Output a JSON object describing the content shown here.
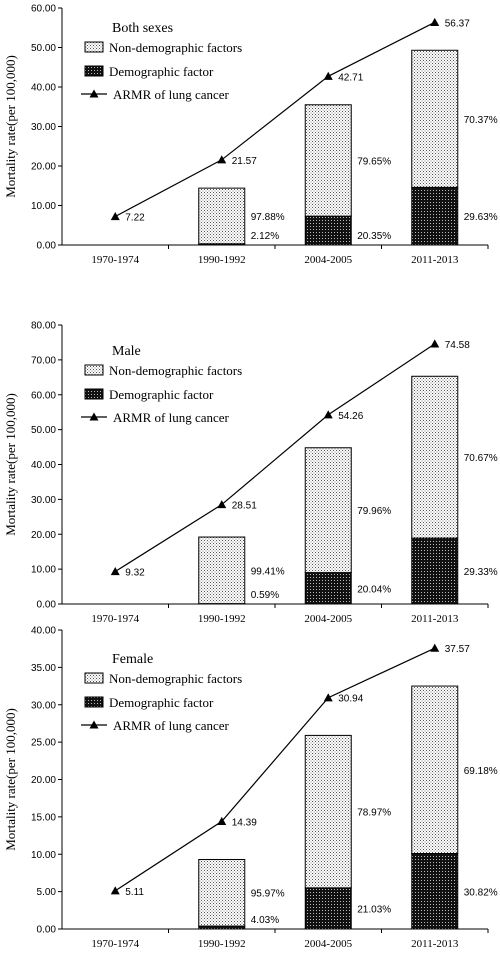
{
  "chart_data": [
    {
      "type": "bar",
      "title": "Both sexes",
      "ylabel": "Mortality  rate(per 100,000)",
      "categories": [
        "1970-1974",
        "1990-1992",
        "2004-2005",
        "2011-2013"
      ],
      "ylim": [
        0,
        60
      ],
      "yticks": [
        "0.00",
        "10.00",
        "20.00",
        "30.00",
        "40.00",
        "50.00",
        "60.00"
      ],
      "legend": [
        "Non-demographic factors",
        "Demographic factor",
        "ARMR of lung cancer"
      ],
      "series": [
        {
          "name": "Demographic factor",
          "values": [
            0,
            0.3,
            7.3,
            14.6
          ],
          "labels": [
            "",
            "2.12%",
            "20.35%",
            "29.63%"
          ]
        },
        {
          "name": "Non-demographic factors",
          "values": [
            0,
            14.1,
            28.2,
            34.7
          ],
          "labels": [
            "",
            "97.88%",
            "79.65%",
            "70.37%"
          ]
        },
        {
          "name": "ARMR of lung cancer",
          "values": [
            7.22,
            21.57,
            42.71,
            56.37
          ],
          "labels": [
            "7.22",
            "21.57",
            "42.71",
            "56.37"
          ]
        }
      ]
    },
    {
      "type": "bar",
      "title": "Male",
      "ylabel": "Mortality  rate(per 100,000)",
      "categories": [
        "1970-1974",
        "1990-1992",
        "2004-2005",
        "2011-2013"
      ],
      "ylim": [
        0,
        80
      ],
      "yticks": [
        "0.00",
        "10.00",
        "20.00",
        "30.00",
        "40.00",
        "50.00",
        "60.00",
        "70.00",
        "80.00"
      ],
      "legend": [
        "Non-demographic factors",
        "Demographic factor",
        "ARMR of lung cancer"
      ],
      "series": [
        {
          "name": "Demographic factor",
          "values": [
            0,
            0.1,
            9.0,
            18.9
          ],
          "labels": [
            "",
            "0.59%",
            "20.04%",
            "29.33%"
          ]
        },
        {
          "name": "Non-demographic factors",
          "values": [
            0,
            19.1,
            35.8,
            46.4
          ],
          "labels": [
            "",
            "99.41%",
            "79.96%",
            "70.67%"
          ]
        },
        {
          "name": "ARMR of lung cancer",
          "values": [
            9.32,
            28.51,
            54.26,
            74.58
          ],
          "labels": [
            "9.32",
            "28.51",
            "54.26",
            "74.58"
          ]
        }
      ]
    },
    {
      "type": "bar",
      "title": "Female",
      "ylabel": "Mortality  rate(per 100,000)",
      "categories": [
        "1970-1974",
        "1990-1992",
        "2004-2005",
        "2011-2013"
      ],
      "ylim": [
        0,
        40
      ],
      "yticks": [
        "0.00",
        "5.00",
        "10.00",
        "15.00",
        "20.00",
        "25.00",
        "30.00",
        "35.00",
        "40.00"
      ],
      "legend": [
        "Non-demographic factors",
        "Demographic factor",
        "ARMR of lung cancer"
      ],
      "series": [
        {
          "name": "Demographic factor",
          "values": [
            0,
            0.4,
            5.5,
            10.1
          ],
          "labels": [
            "",
            "4.03%",
            "21.03%",
            "30.82%"
          ]
        },
        {
          "name": "Non-demographic factors",
          "values": [
            0,
            8.9,
            20.4,
            22.4
          ],
          "labels": [
            "",
            "95.97%",
            "78.97%",
            "69.18%"
          ]
        },
        {
          "name": "ARMR of lung cancer",
          "values": [
            5.11,
            14.39,
            30.94,
            37.57
          ],
          "labels": [
            "5.11",
            "14.39",
            "30.94",
            "37.57"
          ]
        }
      ]
    }
  ]
}
